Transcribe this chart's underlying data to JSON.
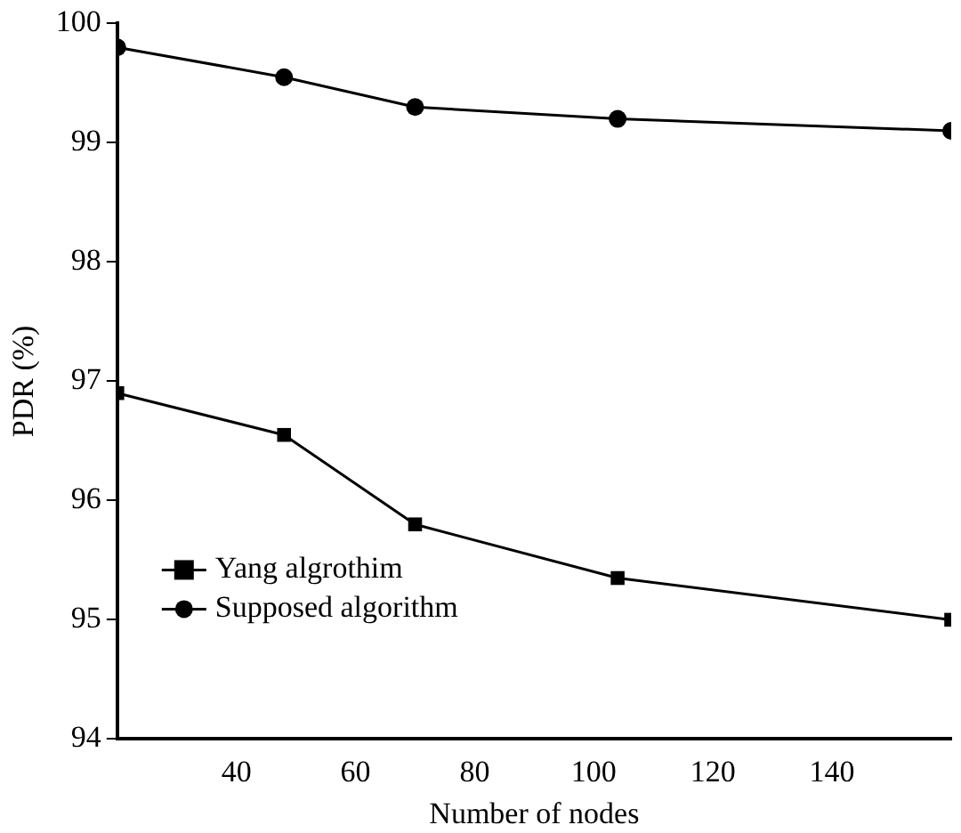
{
  "chart_data": {
    "type": "line",
    "xlabel": "Number of nodes",
    "ylabel": "PDR (%)",
    "x": [
      20,
      48,
      70,
      104,
      160
    ],
    "series": [
      {
        "name": "Yang algrothim",
        "color": "#000000",
        "marker": "square",
        "values": [
          96.9,
          96.55,
          95.8,
          95.35,
          95.0
        ]
      },
      {
        "name": "Supposed algorithm",
        "color": "#000000",
        "marker": "circle",
        "values": [
          99.8,
          99.55,
          99.3,
          99.2,
          99.1
        ]
      }
    ],
    "xlim": [
      20,
      160
    ],
    "xticks": [
      40,
      60,
      80,
      100,
      120,
      140
    ],
    "ylim": [
      94,
      100
    ],
    "yticks": [
      94,
      95,
      96,
      97,
      98,
      99,
      100
    ],
    "grid": false,
    "legend": "bottom left",
    "line_style": "solid"
  }
}
